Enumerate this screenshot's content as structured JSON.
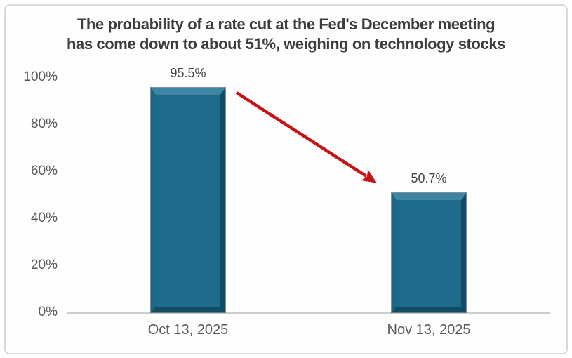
{
  "chart_data": {
    "type": "bar",
    "title_line1": "The probability of a rate cut at the Fed's December meeting",
    "title_line2": "has come down to about 51%, weighing on technology stocks",
    "categories": [
      "Oct 13, 2025",
      "Nov 13, 2025"
    ],
    "values": [
      95.5,
      50.7
    ],
    "value_labels": [
      "95.5%",
      "50.7%"
    ],
    "yticks": [
      "100%",
      "80%",
      "60%",
      "40%",
      "20%",
      "0%"
    ],
    "ylim": [
      0,
      100
    ],
    "xlabel": "",
    "ylabel": "",
    "grid": "off",
    "legend": "none",
    "bar_color": "#1d6a8c",
    "bar_bevel_light": "#3f84a2",
    "bar_bevel_dark": "#0e4c67",
    "arrow_color": "#c51318",
    "annotation": "red arrow from top of first bar down to second bar"
  }
}
